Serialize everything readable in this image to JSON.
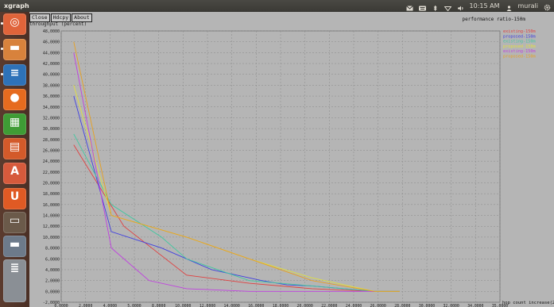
{
  "topbar": {
    "app_title": "xgraph",
    "time": "10:15 AM",
    "user": "murali",
    "icons": [
      "mail-icon",
      "keyboard-icon",
      "bluetooth-icon",
      "wifi-icon",
      "volume-icon",
      "user-icon",
      "settings-gear-icon"
    ]
  },
  "launcher": {
    "items": [
      {
        "icon": "ubuntu-dash-icon",
        "color": "#e0643a",
        "glyph": "◎"
      },
      {
        "icon": "files-folder-icon",
        "color": "#d8823c",
        "glyph": "▬"
      },
      {
        "icon": "libreoffice-writer-icon",
        "color": "#2e72b8",
        "glyph": "≡"
      },
      {
        "icon": "firefox-icon",
        "color": "#e66b1f",
        "glyph": "●"
      },
      {
        "icon": "libreoffice-calc-icon",
        "color": "#3f9c35",
        "glyph": "▦"
      },
      {
        "icon": "libreoffice-impress-icon",
        "color": "#d35a2a",
        "glyph": "▤"
      },
      {
        "icon": "software-center-icon",
        "color": "#d65a3c",
        "glyph": "A"
      },
      {
        "icon": "ubuntu-one-icon",
        "color": "#e05a24",
        "glyph": "U"
      },
      {
        "icon": "terminal-icon",
        "color": "#6b5a4a",
        "glyph": "▭"
      },
      {
        "icon": "drive-icon",
        "color": "#6d7a8a",
        "glyph": "▬"
      },
      {
        "icon": "trash-stack-icon",
        "color": "#8a8f95",
        "glyph": "≣"
      }
    ]
  },
  "window": {
    "buttons": {
      "close": "Close",
      "hdcpy": "Hdcpy",
      "about": "About"
    },
    "y_unit": "throughput (percent)"
  },
  "chart_data": {
    "type": "line",
    "title": "performance ratio-150m",
    "xlabel": "hop count increase(2)",
    "ylabel": "",
    "xlim": [
      0,
      35
    ],
    "ylim": [
      -2000,
      48000
    ],
    "xticks": [
      "0.0000",
      "2.0000",
      "4.0000",
      "5.0000",
      "8.0000",
      "10.0000",
      "12.0000",
      "14.0000",
      "16.0000",
      "18.0000",
      "20.0000",
      "22.0000",
      "24.0000",
      "26.0000",
      "28.0000",
      "30.0000",
      "32.0000",
      "34.0000",
      "35.0000"
    ],
    "yticks": [
      "-2,0000",
      "0,0000",
      "2,0000",
      "4,0000",
      "6,0000",
      "8,0000",
      "10,0000",
      "12,0000",
      "14,0000",
      "16,0000",
      "18,0000",
      "20,0000",
      "22,0000",
      "24,0000",
      "26,0000",
      "28,0000",
      "30,0000",
      "32,0000",
      "34,0000",
      "36,0000",
      "38,0000",
      "40,0000",
      "42,0000",
      "44,0000",
      "46,0000",
      "48,0000"
    ],
    "grid": true,
    "legend_position": "top-right",
    "series": [
      {
        "name": "existing-150m",
        "color": "#e04040",
        "x": [
          1,
          5,
          10,
          15,
          20,
          25,
          27
        ],
        "y": [
          27000,
          12000,
          3000,
          1500,
          500,
          0,
          0
        ]
      },
      {
        "name": "proposed-150m",
        "color": "#4040e0",
        "x": [
          1,
          4,
          8,
          10,
          12,
          14,
          16,
          18,
          20,
          25,
          27
        ],
        "y": [
          36000,
          11000,
          8000,
          6000,
          4000,
          3000,
          2000,
          1200,
          1000,
          0,
          0
        ]
      },
      {
        "name": "existing-150m",
        "color": "#40c8a0",
        "x": [
          1,
          4,
          8,
          10,
          15,
          20,
          25,
          27
        ],
        "y": [
          29000,
          16000,
          10000,
          6000,
          2000,
          1000,
          0,
          0
        ]
      },
      {
        "name": "proposed-150m",
        "color": "#e0e040",
        "x": [
          1,
          4,
          10,
          15,
          20,
          25,
          27
        ],
        "y": [
          38000,
          14000,
          10000,
          6000,
          2500,
          0,
          0
        ]
      },
      {
        "name": "existing-150m",
        "color": "#c040e0",
        "x": [
          1,
          4,
          7,
          10,
          15,
          20,
          25
        ],
        "y": [
          44000,
          8000,
          2000,
          500,
          0,
          0,
          0
        ]
      },
      {
        "name": "proposed-150m",
        "color": "#e8a020",
        "x": [
          1,
          4,
          10,
          15,
          20,
          25,
          27
        ],
        "y": [
          46000,
          14000,
          10000,
          6000,
          2000,
          0,
          0
        ]
      }
    ]
  }
}
